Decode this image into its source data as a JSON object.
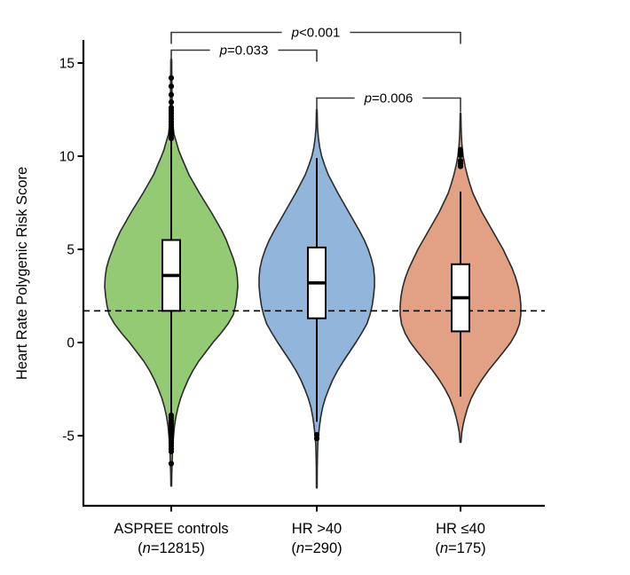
{
  "figure": {
    "background": "#ffffff",
    "caption": ""
  },
  "chart_data": {
    "type": "violin-box",
    "title": "",
    "xlabel": "",
    "ylabel": "Heart Rate Polygenic Risk Score",
    "ylim": [
      -8,
      16
    ],
    "yticks": [
      15,
      10,
      5,
      0,
      -5
    ],
    "grid": false,
    "reference_line": {
      "value": 1.7,
      "style": "dashed",
      "color": "#000000"
    },
    "groups": [
      {
        "id": "aspree-controls",
        "label": "ASPREE controls",
        "n": 12815,
        "n_label_parts": [
          "(",
          "n",
          "=12815)"
        ],
        "fill": "#94CA74",
        "stroke": "#2b2b2b",
        "box": {
          "q1": 1.7,
          "median": 3.6,
          "q3": 5.5,
          "whisker_low": -3.85,
          "whisker_high": 11.0
        },
        "outliers_high": [
          10.95,
          11.1,
          11.25,
          11.4,
          11.55,
          11.7,
          11.85,
          12.0,
          12.15,
          12.3,
          12.45,
          12.6,
          12.9,
          13.3,
          13.75,
          14.2
        ],
        "outliers_low": [
          -3.9,
          -4.05,
          -4.2,
          -4.35,
          -4.5,
          -4.65,
          -4.8,
          -4.95,
          -5.1,
          -5.25,
          -5.4,
          -5.55,
          -5.7,
          -5.85,
          -6.5
        ],
        "violin_range": [
          -7.7,
          15.2
        ],
        "violin_profile": [
          [
            15.2,
            0.5
          ],
          [
            14.5,
            0.6
          ],
          [
            13.5,
            0.8
          ],
          [
            12.5,
            1.1
          ],
          [
            11.8,
            1.6
          ],
          [
            11.2,
            3
          ],
          [
            10.8,
            5.5
          ],
          [
            10.3,
            8.5
          ],
          [
            10,
            11
          ],
          [
            9.5,
            15.5
          ],
          [
            9,
            20
          ],
          [
            8.5,
            26
          ],
          [
            8,
            32
          ],
          [
            7.5,
            38.5
          ],
          [
            7,
            45
          ],
          [
            6.5,
            51
          ],
          [
            6,
            57
          ],
          [
            5.5,
            62
          ],
          [
            5,
            66
          ],
          [
            4.5,
            70
          ],
          [
            4,
            73
          ],
          [
            3.5,
            74.5
          ],
          [
            3,
            75
          ],
          [
            2.5,
            74
          ],
          [
            2,
            72.5
          ],
          [
            1.5,
            70
          ],
          [
            1,
            64
          ],
          [
            0.5,
            56
          ],
          [
            0,
            47
          ],
          [
            -0.5,
            39
          ],
          [
            -1,
            31
          ],
          [
            -1.5,
            24.5
          ],
          [
            -2,
            19
          ],
          [
            -2.5,
            14.5
          ],
          [
            -3,
            10.5
          ],
          [
            -3.5,
            7.5
          ],
          [
            -4,
            5.2
          ],
          [
            -4.5,
            3.6
          ],
          [
            -5,
            2.6
          ],
          [
            -5.5,
            1.8
          ],
          [
            -6,
            1.3
          ],
          [
            -6.6,
            0.9
          ],
          [
            -7.1,
            0.6
          ],
          [
            -7.7,
            0.4
          ]
        ]
      },
      {
        "id": "hr-gt-40",
        "label": "HR >40",
        "n": 290,
        "n_label_parts": [
          "(",
          "n",
          "=290)"
        ],
        "fill": "#92B5DB",
        "stroke": "#2b2b2b",
        "box": {
          "q1": 1.3,
          "median": 3.2,
          "q3": 5.1,
          "whisker_low": -4.25,
          "whisker_high": 9.9
        },
        "outliers_high": [],
        "outliers_low": [
          -4.95,
          -5.15
        ],
        "violin_range": [
          -7.8,
          12.5
        ],
        "violin_profile": [
          [
            12.5,
            0.4
          ],
          [
            12,
            0.6
          ],
          [
            11.5,
            0.9
          ],
          [
            11,
            1.8
          ],
          [
            10.5,
            3.2
          ],
          [
            10,
            5.5
          ],
          [
            9.5,
            9
          ],
          [
            9,
            13
          ],
          [
            8.5,
            18.5
          ],
          [
            8,
            24
          ],
          [
            7.5,
            30
          ],
          [
            7,
            36
          ],
          [
            6.5,
            42
          ],
          [
            6,
            48
          ],
          [
            5.5,
            53.5
          ],
          [
            5,
            58
          ],
          [
            4.5,
            61.5
          ],
          [
            4,
            64
          ],
          [
            3.5,
            65
          ],
          [
            3,
            65
          ],
          [
            2.5,
            64
          ],
          [
            2,
            62.5
          ],
          [
            1.5,
            60
          ],
          [
            1,
            56.5
          ],
          [
            0.5,
            50.5
          ],
          [
            0,
            44
          ],
          [
            -0.5,
            37
          ],
          [
            -1,
            30
          ],
          [
            -1.5,
            23.5
          ],
          [
            -2,
            18
          ],
          [
            -2.5,
            13.5
          ],
          [
            -3,
            9.5
          ],
          [
            -3.5,
            6.5
          ],
          [
            -4,
            4.5
          ],
          [
            -4.5,
            3
          ],
          [
            -5,
            2
          ],
          [
            -5.4,
            1.2
          ],
          [
            -6,
            0.8
          ],
          [
            -6.8,
            0.5
          ],
          [
            -7.8,
            0.35
          ]
        ]
      },
      {
        "id": "hr-le-40",
        "label": "HR ≤40",
        "n": 175,
        "n_label_parts": [
          "(",
          "n",
          "=175)"
        ],
        "fill": "#E2A184",
        "stroke": "#2b2b2b",
        "box": {
          "q1": 0.6,
          "median": 2.4,
          "q3": 4.2,
          "whisker_low": -2.9,
          "whisker_high": 8.1
        },
        "outliers_high": [
          9.45,
          9.6,
          9.75,
          10.05,
          10.2,
          10.35
        ],
        "outliers_low": [],
        "violin_range": [
          -5.35,
          12.3
        ],
        "violin_profile": [
          [
            12.3,
            0.4
          ],
          [
            11.5,
            0.7
          ],
          [
            11,
            1.1
          ],
          [
            10.5,
            1.8
          ],
          [
            10,
            3
          ],
          [
            9.5,
            5
          ],
          [
            9,
            7.5
          ],
          [
            8.5,
            10.5
          ],
          [
            8,
            14
          ],
          [
            7.5,
            19
          ],
          [
            7,
            24
          ],
          [
            6.5,
            30
          ],
          [
            6,
            36
          ],
          [
            5.5,
            42
          ],
          [
            5,
            48
          ],
          [
            4.5,
            53
          ],
          [
            4,
            58
          ],
          [
            3.5,
            62
          ],
          [
            3,
            65
          ],
          [
            2.5,
            67
          ],
          [
            2,
            68
          ],
          [
            1.5,
            68
          ],
          [
            1,
            66.5
          ],
          [
            0.5,
            62.5
          ],
          [
            0,
            56.5
          ],
          [
            -0.5,
            48.5
          ],
          [
            -1,
            40
          ],
          [
            -1.5,
            31.5
          ],
          [
            -2,
            24
          ],
          [
            -2.5,
            17.5
          ],
          [
            -3,
            12
          ],
          [
            -3.5,
            8
          ],
          [
            -4,
            5
          ],
          [
            -4.4,
            3
          ],
          [
            -4.8,
            1.5
          ],
          [
            -5.35,
            0.5
          ]
        ]
      }
    ],
    "significance": [
      {
        "italic": "p",
        "rest": "<0.001",
        "from": 0,
        "to": 2
      },
      {
        "italic": "p",
        "rest": "=0.033",
        "from": 0,
        "to": 1
      },
      {
        "italic": "p",
        "rest": "=0.006",
        "from": 1,
        "to": 2
      }
    ]
  }
}
